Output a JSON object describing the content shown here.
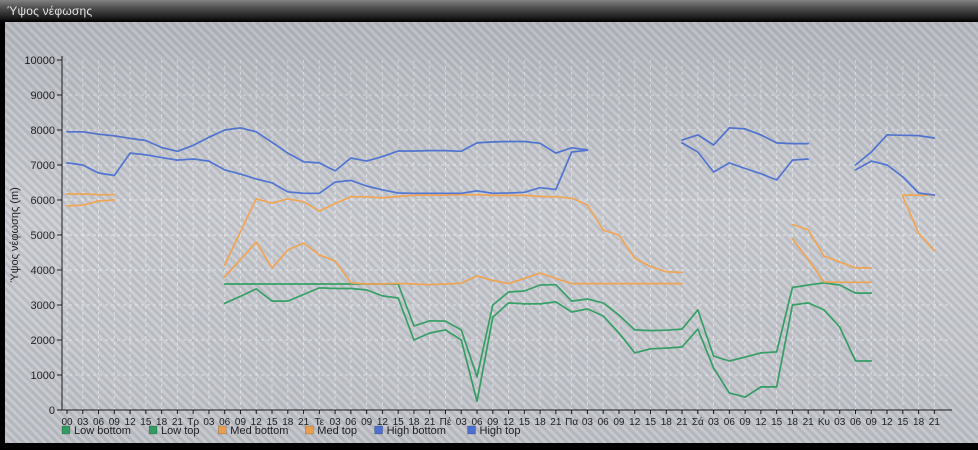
{
  "window": {
    "title": "Ύψος νέφωσης"
  },
  "chart_data": {
    "type": "line",
    "title": "Ύψος νέφωσης",
    "ylabel": "Ύψος νέφωσης (m)",
    "ylim": [
      0,
      10000
    ],
    "ytick_step": 1000,
    "grid": true,
    "legend_position": "bottom",
    "x_tick_labels": [
      "00",
      "03",
      "06",
      "09",
      "12",
      "15",
      "18",
      "21",
      "Τρ",
      "03",
      "06",
      "09",
      "12",
      "15",
      "18",
      "21",
      "Τε",
      "03",
      "06",
      "09",
      "12",
      "15",
      "18",
      "21",
      "Πέ",
      "03",
      "06",
      "09",
      "12",
      "15",
      "18",
      "21",
      "Πα",
      "03",
      "06",
      "09",
      "12",
      "15",
      "18",
      "21",
      "Σά",
      "03",
      "06",
      "09",
      "12",
      "15",
      "18",
      "21",
      "Κυ",
      "03",
      "06",
      "09",
      "12",
      "15",
      "18",
      "21"
    ],
    "series": [
      {
        "name": "Low bottom",
        "color": "#2e9e60",
        "values": [
          null,
          null,
          null,
          null,
          null,
          null,
          null,
          null,
          null,
          null,
          3050,
          3250,
          3460,
          3110,
          3110,
          3300,
          3490,
          3470,
          3470,
          3430,
          3260,
          3200,
          2000,
          2200,
          2290,
          2000,
          250,
          2650,
          3060,
          3030,
          3030,
          3090,
          2800,
          2890,
          2690,
          2200,
          1630,
          1750,
          1770,
          1800,
          2310,
          1200,
          490,
          370,
          660,
          660,
          3000,
          3060,
          2860,
          2370,
          1400,
          1400,
          null,
          null,
          null,
          null
        ]
      },
      {
        "name": "Low top",
        "color": "#2e9e60",
        "values": [
          null,
          null,
          null,
          null,
          null,
          null,
          null,
          null,
          null,
          null,
          3600,
          3600,
          3600,
          3600,
          3600,
          3600,
          3600,
          3600,
          3600,
          3600,
          3600,
          3600,
          2400,
          2550,
          2540,
          2290,
          950,
          3000,
          3370,
          3400,
          3570,
          3580,
          3110,
          3170,
          3060,
          2710,
          2290,
          2270,
          2280,
          2310,
          2860,
          1540,
          1400,
          1510,
          1630,
          1660,
          3500,
          3570,
          3630,
          3570,
          3340,
          3340,
          null,
          null,
          null,
          null
        ]
      },
      {
        "name": "Med bottom",
        "color": "#f1a14c",
        "values": [
          5830,
          5850,
          5970,
          6000,
          null,
          null,
          null,
          null,
          null,
          null,
          3800,
          4300,
          4800,
          4060,
          4570,
          4770,
          4430,
          4260,
          3630,
          3600,
          3600,
          3620,
          3600,
          3580,
          3600,
          3620,
          3830,
          3700,
          3610,
          3760,
          3910,
          3760,
          3610,
          3610,
          3610,
          3610,
          3610,
          3610,
          3610,
          3610,
          null,
          null,
          null,
          null,
          null,
          null,
          4890,
          4300,
          3660,
          3650,
          3650,
          3650,
          null,
          6100,
          5050,
          4550
        ]
      },
      {
        "name": "Med top",
        "color": "#f1a14c",
        "values": [
          6170,
          6170,
          6150,
          6150,
          null,
          null,
          null,
          null,
          null,
          null,
          4140,
          5100,
          6030,
          5910,
          6030,
          5950,
          5680,
          5900,
          6090,
          6090,
          6060,
          6100,
          6140,
          6140,
          6140,
          6150,
          6150,
          6130,
          6130,
          6130,
          6100,
          6090,
          6050,
          5860,
          5140,
          5000,
          4340,
          4100,
          3950,
          3930,
          null,
          null,
          null,
          null,
          null,
          null,
          5300,
          5150,
          4400,
          4230,
          4060,
          4060,
          null,
          6140,
          6140,
          6140
        ]
      },
      {
        "name": "High bottom",
        "color": "#4a70d4",
        "values": [
          7060,
          7000,
          6770,
          6700,
          7340,
          7290,
          7210,
          7140,
          7170,
          7110,
          6860,
          6740,
          6600,
          6490,
          6230,
          6190,
          6190,
          6510,
          6560,
          6400,
          6290,
          6200,
          6190,
          6190,
          6190,
          6190,
          6260,
          6190,
          6200,
          6220,
          6350,
          6300,
          7370,
          7420,
          null,
          null,
          null,
          null,
          null,
          7630,
          7370,
          6800,
          7060,
          6900,
          6750,
          6570,
          7140,
          7170,
          null,
          null,
          6860,
          7110,
          7000,
          6660,
          6200,
          6140
        ]
      },
      {
        "name": "High top",
        "color": "#4a70d4",
        "values": [
          7950,
          7950,
          7880,
          7830,
          7760,
          7700,
          7500,
          7390,
          7560,
          7790,
          8000,
          8060,
          7950,
          7650,
          7340,
          7090,
          7060,
          6830,
          7200,
          7110,
          7240,
          7400,
          7400,
          7410,
          7410,
          7390,
          7630,
          7660,
          7670,
          7670,
          7620,
          7340,
          7490,
          7430,
          null,
          null,
          null,
          null,
          null,
          7710,
          7860,
          7570,
          8060,
          8030,
          7860,
          7630,
          7610,
          7610,
          null,
          null,
          7000,
          7370,
          7860,
          7850,
          7840,
          7770
        ]
      }
    ]
  }
}
